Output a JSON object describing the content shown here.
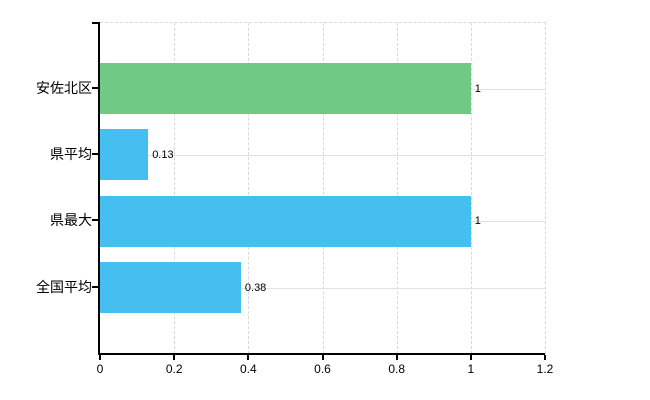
{
  "chart_data": {
    "type": "bar",
    "orientation": "horizontal",
    "title": "",
    "xlabel": "",
    "ylabel": "",
    "categories": [
      "安佐北区",
      "県平均",
      "県最大",
      "全国平均"
    ],
    "values": [
      1,
      0.13,
      1,
      0.38
    ],
    "value_labels": [
      "1",
      "0.13",
      "1",
      "0.38"
    ],
    "bar_colors": [
      "#70ca85",
      "#44bfef",
      "#44bfef",
      "#44bfef"
    ],
    "xlim": [
      0,
      1.2
    ],
    "x_tick_values": [
      0,
      0.2,
      0.4,
      0.6,
      0.8,
      1,
      1.2
    ],
    "x_tick_labels": [
      "0",
      "0.2",
      "0.4",
      "0.6",
      "0.8",
      "1",
      "1.2"
    ],
    "legend": null,
    "grid": {
      "vertical_style": "dashed",
      "horizontal_style": "solid",
      "top_border_style": "dashed",
      "right_border_style": "dashed"
    },
    "colors": {
      "highlight_bar": "#70ca85",
      "comparison_bar": "#44bfef",
      "vertical_grid": "#d8d8d8",
      "horizontal_grid": "#dde3dd",
      "dashed_border": "#d9d9d9",
      "axis": "#000000",
      "text": "#000000",
      "background": "#ffffff"
    }
  }
}
